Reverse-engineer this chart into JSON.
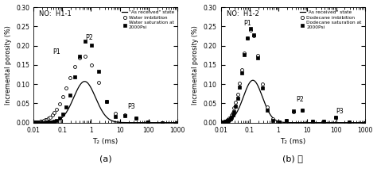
{
  "title_a": "NO:  H1-1",
  "title_b": "NO:  H1-2",
  "xlabel": "T₂ (ms)",
  "ylabel": "Incremental porosity (%)",
  "xlim": [
    0.01,
    1000
  ],
  "ylim": [
    0.0,
    0.3
  ],
  "yticks": [
    0.0,
    0.05,
    0.1,
    0.15,
    0.2,
    0.25,
    0.3
  ],
  "caption_a": "(a)",
  "caption_b": "(b) 。",
  "legend_a": [
    "\"As received\" state",
    "Water imbibition",
    "Water saturation at\n2000Psi"
  ],
  "legend_b": [
    "\"As received\" state",
    "Dodecane imbibition",
    "Dodecane saturation at\n2000Psi"
  ],
  "labels_a": {
    "P1": [
      0.065,
      0.175
    ],
    "P2": [
      0.85,
      0.212
    ],
    "P3": [
      25,
      0.033
    ]
  },
  "labels_b": {
    "P1": [
      0.085,
      0.248
    ],
    "P2": [
      5.5,
      0.05
    ],
    "P3": [
      130,
      0.02
    ]
  },
  "background_color": "#ffffff"
}
